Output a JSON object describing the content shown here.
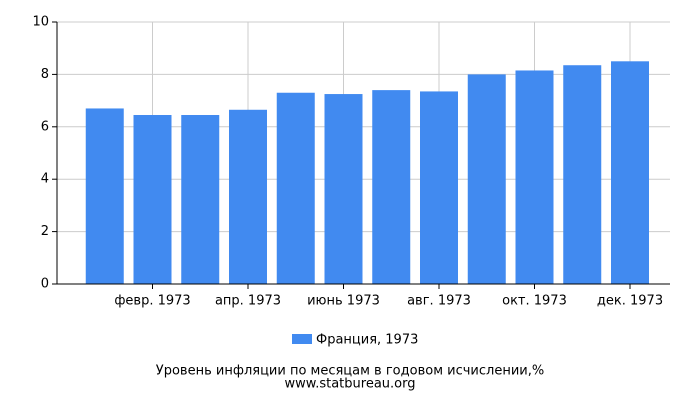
{
  "chart_data": {
    "type": "bar",
    "title": "Уровень инфляции по месяцам в годовом исчислении,%",
    "subtitle": "www.statbureau.org",
    "categories": [
      null,
      "февр. 1973",
      null,
      "апр. 1973",
      null,
      "июнь 1973",
      null,
      "авг. 1973",
      null,
      "окт. 1973",
      null,
      "дек. 1973"
    ],
    "series": [
      {
        "name": "Франция, 1973",
        "color": "#418af0",
        "values": [
          6.7,
          6.45,
          6.45,
          6.65,
          7.3,
          7.25,
          7.4,
          7.35,
          8.0,
          8.15,
          8.35,
          8.5
        ]
      }
    ],
    "ylim": [
      0,
      10
    ],
    "yticks": [
      0,
      2,
      4,
      6,
      8,
      10
    ],
    "grid": true
  }
}
